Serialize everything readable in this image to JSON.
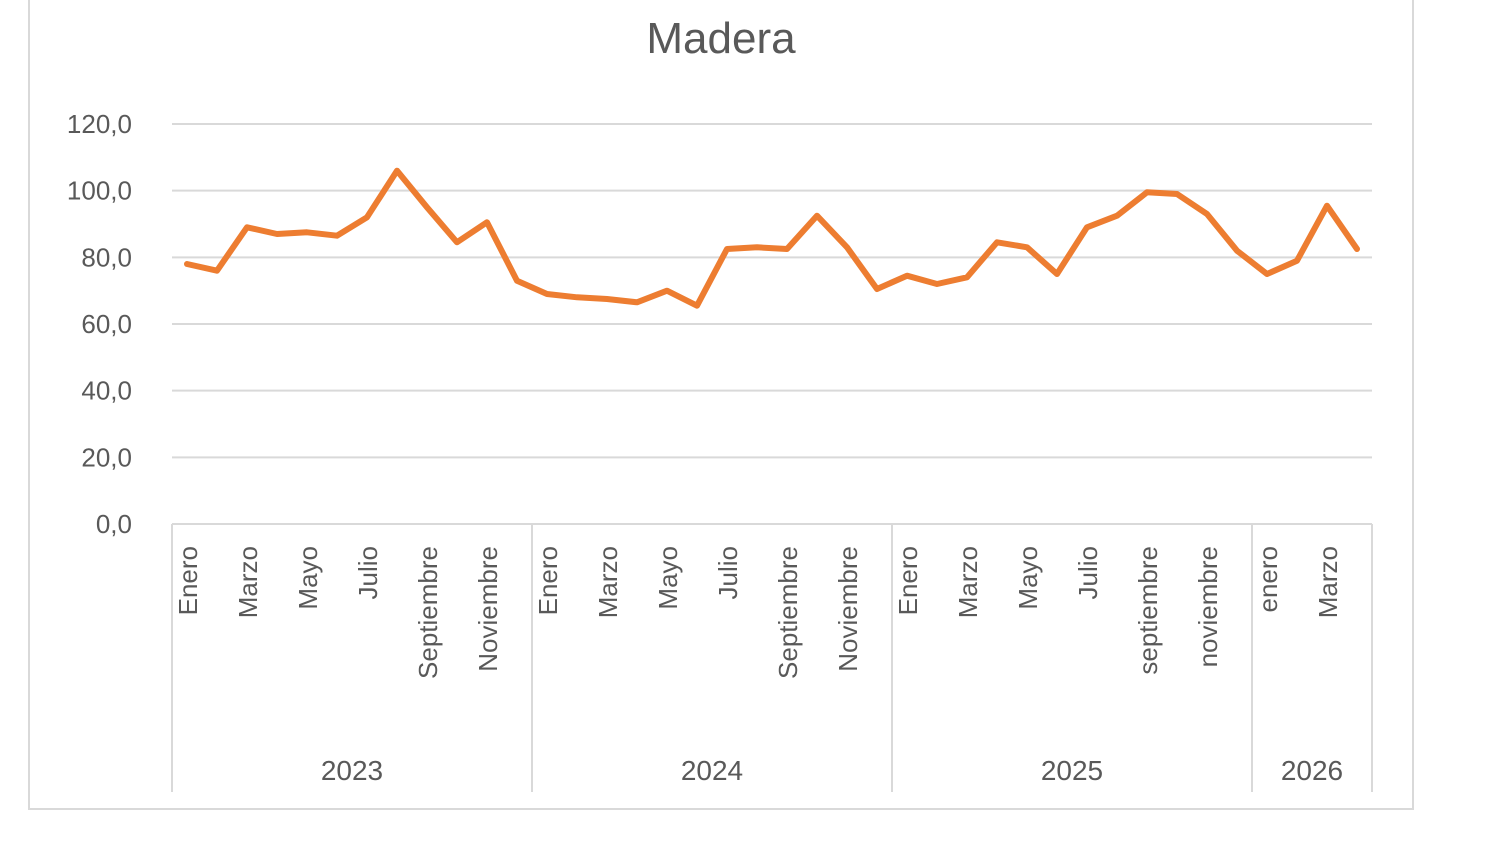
{
  "chart_data": {
    "type": "line",
    "title": "Madera",
    "xlabel": "",
    "ylabel": "",
    "ylim": [
      0,
      120
    ],
    "yticks": [
      0,
      20,
      40,
      60,
      80,
      100,
      120
    ],
    "ytick_labels": [
      "0,0",
      "20,0",
      "40,0",
      "60,0",
      "80,0",
      "100,0",
      "120,0"
    ],
    "grid": true,
    "legend": "none",
    "line_color": "#ED7D31",
    "years": [
      {
        "label": "2023",
        "months": 12
      },
      {
        "label": "2024",
        "months": 12
      },
      {
        "label": "2025",
        "months": 12
      },
      {
        "label": "2026",
        "months": 4
      }
    ],
    "x_tick_labels": [
      "Enero",
      "",
      "Marzo",
      "",
      "Mayo",
      "",
      "Julio",
      "",
      "Septiembre",
      "",
      "Noviembre",
      "",
      "Enero",
      "",
      "Marzo",
      "",
      "Mayo",
      "",
      "Julio",
      "",
      "Septiembre",
      "",
      "Noviembre",
      "",
      "Enero",
      "",
      "Marzo",
      "",
      "Mayo",
      "",
      "Julio",
      "",
      "septiembre",
      "",
      "noviembre",
      "",
      "enero",
      "",
      "Marzo",
      ""
    ],
    "series": [
      {
        "values": [
          78,
          76,
          89,
          87,
          87.5,
          86.5,
          92,
          106,
          95,
          84.5,
          90.5,
          73,
          69,
          68,
          67.5,
          66.5,
          70,
          65.5,
          82.5,
          83,
          82.5,
          92.5,
          83,
          70.5,
          74.5,
          72,
          74,
          84.5,
          83,
          75,
          89,
          92.5,
          99.5,
          99,
          93,
          82,
          75,
          79,
          95.5,
          82.5
        ]
      }
    ]
  }
}
